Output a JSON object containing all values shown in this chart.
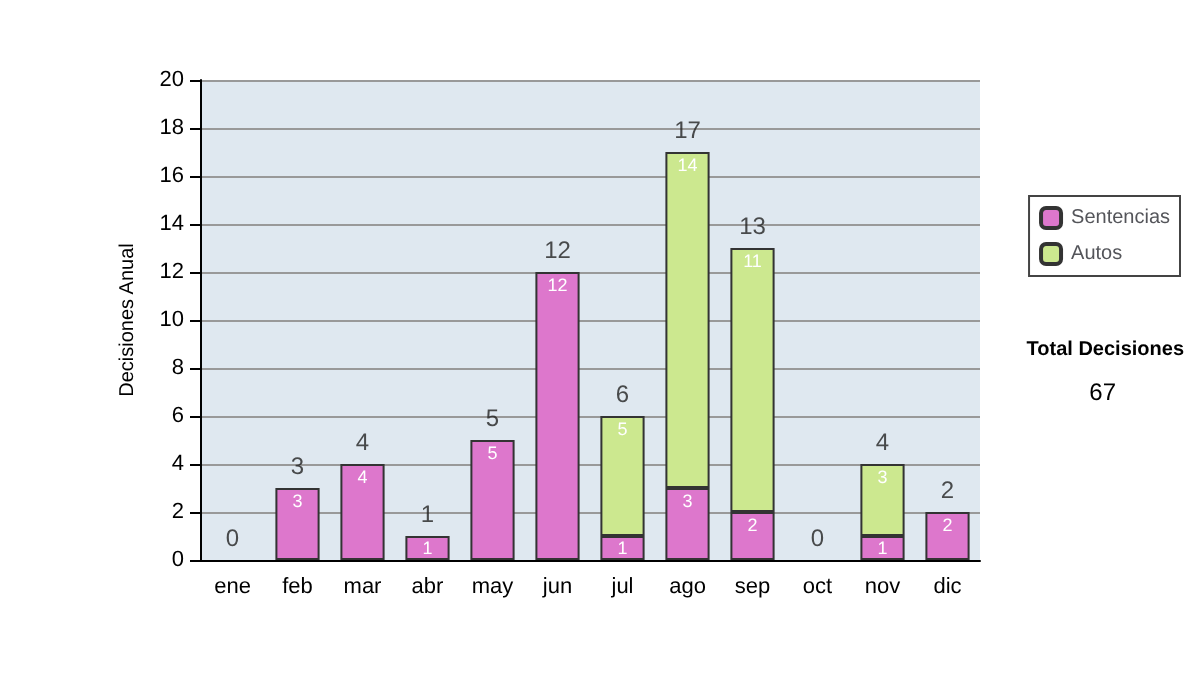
{
  "chart_data": {
    "type": "bar",
    "stacked": true,
    "ylabel": "Decisiones Anual",
    "categories": [
      "ene",
      "feb",
      "mar",
      "abr",
      "may",
      "jun",
      "jul",
      "ago",
      "sep",
      "oct",
      "nov",
      "dic"
    ],
    "series": [
      {
        "name": "Sentencias",
        "color": "#dd77cc",
        "values": [
          0,
          3,
          4,
          1,
          5,
          12,
          1,
          3,
          2,
          0,
          1,
          2
        ],
        "value_labels": [
          null,
          "3",
          "4",
          "1",
          "5",
          "12",
          "1",
          "3",
          "2",
          null,
          "1",
          "2"
        ]
      },
      {
        "name": "Autos",
        "color": "#cce88f",
        "values": [
          0,
          0,
          0,
          0,
          0,
          0,
          5,
          14,
          11,
          0,
          3,
          0
        ],
        "value_labels": [
          null,
          null,
          null,
          null,
          null,
          null,
          "5",
          "14",
          "11",
          null,
          "3",
          null
        ]
      }
    ],
    "totals": [
      "0",
      "3",
      "4",
      "1",
      "5",
      "12",
      "6",
      "17",
      "13",
      "0",
      "4",
      "2"
    ],
    "ylim": [
      0,
      20
    ],
    "yticks": [
      0,
      2,
      4,
      6,
      8,
      10,
      12,
      14,
      16,
      18,
      20
    ],
    "grid": "y",
    "legend": "right",
    "annotations": [
      "Total Decisiones",
      "67"
    ]
  }
}
